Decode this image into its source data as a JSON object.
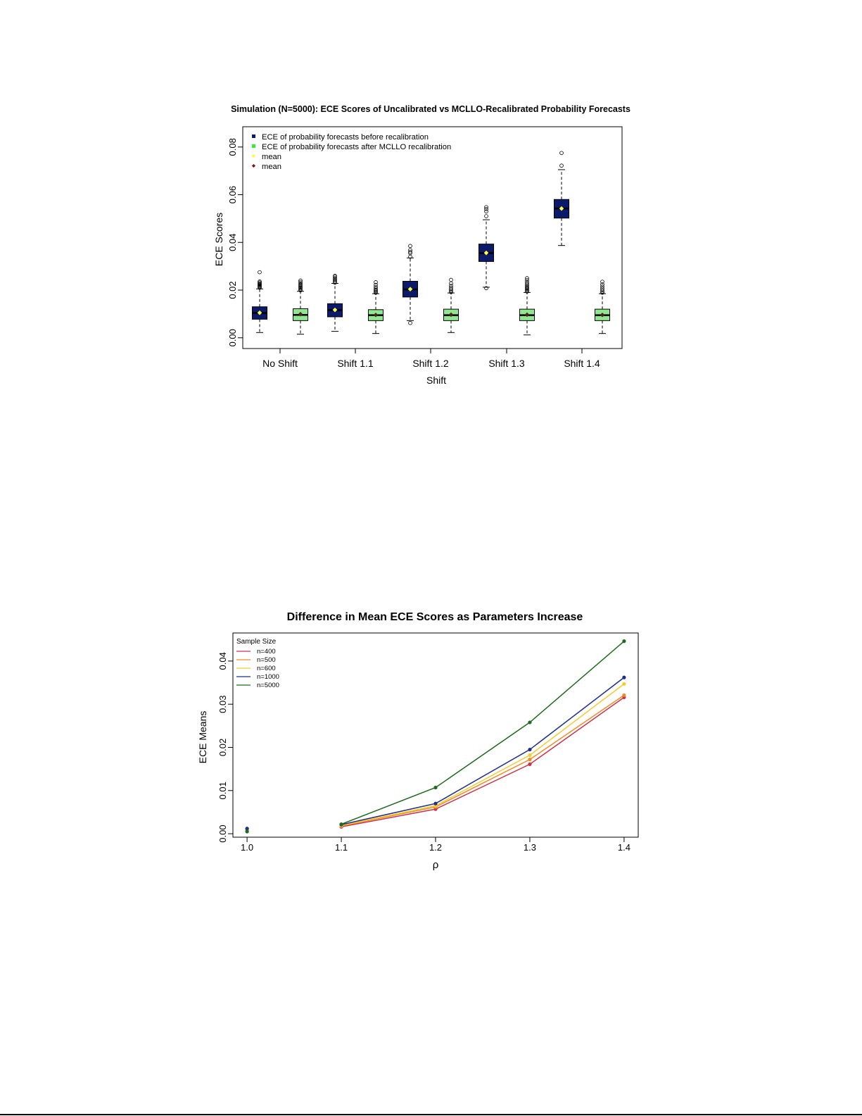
{
  "chart_data": [
    {
      "type": "boxplot",
      "title": "Simulation (N=5000): ECE Scores of Uncalibrated vs MCLLO-Recalibrated Probability Forecasts",
      "xlabel": "Shift",
      "ylabel": "ECE Scores",
      "ylim": [
        0,
        0.09
      ],
      "yticks": [
        "0.00",
        "0.02",
        "0.04",
        "0.06",
        "0.08"
      ],
      "categories": [
        "No Shift",
        "Shift 1.1",
        "Shift 1.2",
        "Shift 1.3",
        "Shift 1.4"
      ],
      "legend_position": "top-left",
      "legend": [
        {
          "label": "ECE of probability forecasts before recalibration",
          "symbol": "square",
          "color": "#0b1a6b"
        },
        {
          "label": "ECE of probability forecasts after MCLLO recalibration",
          "symbol": "square",
          "color": "#33ee33"
        },
        {
          "label": "mean",
          "symbol": "diamond",
          "color": "#ffff33"
        },
        {
          "label": "mean",
          "symbol": "diamond",
          "color": "#7a1a1a"
        }
      ],
      "colors": {
        "before": "#0b1a6b",
        "after": "#8fe88f",
        "mean_before": "#ffff44",
        "mean_after": "#552222"
      },
      "series": [
        {
          "name": "ECE of probability forecasts before recalibration",
          "boxes": [
            {
              "min": 0.0022,
              "q1": 0.0078,
              "median": 0.0104,
              "q3": 0.013,
              "max": 0.0205,
              "mean": 0.0105,
              "outliers": [
                0.021,
                0.0213,
                0.0216,
                0.0219,
                0.0222,
                0.0225,
                0.0228,
                0.0232,
                0.0236,
                0.0275
              ]
            },
            {
              "min": 0.0027,
              "q1": 0.0088,
              "median": 0.0116,
              "q3": 0.0143,
              "max": 0.0228,
              "mean": 0.0117,
              "outliers": [
                0.0231,
                0.0235,
                0.024,
                0.0245,
                0.025,
                0.0256,
                0.026
              ]
            },
            {
              "min": 0.0072,
              "q1": 0.0171,
              "median": 0.0203,
              "q3": 0.0237,
              "max": 0.0335,
              "mean": 0.0204,
              "outliers": [
                0.0062,
                0.034,
                0.0355,
                0.036,
                0.0368,
                0.0385
              ]
            },
            {
              "min": 0.0212,
              "q1": 0.032,
              "median": 0.0355,
              "q3": 0.0393,
              "max": 0.0495,
              "mean": 0.0356,
              "outliers": [
                0.0208,
                0.051,
                0.053,
                0.054,
                0.0548
              ]
            },
            {
              "min": 0.0387,
              "q1": 0.0502,
              "median": 0.0542,
              "q3": 0.058,
              "max": 0.0705,
              "mean": 0.0542,
              "outliers": [
                0.0722,
                0.0775
              ]
            }
          ]
        },
        {
          "name": "ECE of probability forecasts after MCLLO recalibration",
          "boxes": [
            {
              "min": 0.0015,
              "q1": 0.0072,
              "median": 0.0096,
              "q3": 0.0122,
              "max": 0.0195,
              "mean": 0.0099,
              "outliers": [
                0.0199,
                0.0203,
                0.0207,
                0.0211,
                0.0215,
                0.0219,
                0.0223,
                0.0228,
                0.0234,
                0.024
              ]
            },
            {
              "min": 0.0018,
              "q1": 0.0072,
              "median": 0.0095,
              "q3": 0.0118,
              "max": 0.0185,
              "mean": 0.0096,
              "outliers": [
                0.0189,
                0.0193,
                0.0197,
                0.0201,
                0.0206,
                0.0213,
                0.0222,
                0.0233
              ]
            },
            {
              "min": 0.0022,
              "q1": 0.0072,
              "median": 0.0095,
              "q3": 0.012,
              "max": 0.0188,
              "mean": 0.0097,
              "outliers": [
                0.0192,
                0.0197,
                0.0203,
                0.021,
                0.0218,
                0.0228,
                0.0243
              ]
            },
            {
              "min": 0.0012,
              "q1": 0.0072,
              "median": 0.0095,
              "q3": 0.012,
              "max": 0.019,
              "mean": 0.0097,
              "outliers": [
                0.0194,
                0.0198,
                0.0202,
                0.0206,
                0.021,
                0.0215,
                0.022,
                0.0226,
                0.0233,
                0.0242,
                0.025
              ]
            },
            {
              "min": 0.0018,
              "q1": 0.0072,
              "median": 0.0095,
              "q3": 0.012,
              "max": 0.0185,
              "mean": 0.0096,
              "outliers": [
                0.0189,
                0.0194,
                0.02,
                0.0207,
                0.0215,
                0.0224,
                0.0235
              ]
            }
          ]
        }
      ]
    },
    {
      "type": "line",
      "title": "Difference in Mean ECE Scores as Parameters Increase",
      "xlabel": "ρ",
      "ylabel": "ECE Means",
      "xlim": [
        0.985,
        1.415
      ],
      "ylim": [
        -0.0008,
        0.0465
      ],
      "xticks": [
        "1.0",
        "1.1",
        "1.2",
        "1.3",
        "1.4"
      ],
      "yticks": [
        "0.00",
        "0.01",
        "0.02",
        "0.03",
        "0.04"
      ],
      "legend_title": "Sample Size",
      "legend_position": "top-left",
      "x": [
        1.0,
        1.1,
        1.2,
        1.3,
        1.4
      ],
      "series": [
        {
          "name": "n=400",
          "color": "#c8334c",
          "values": [
            0.0008,
            0.0016,
            0.0057,
            0.0161,
            0.0316
          ]
        },
        {
          "name": "n=500",
          "color": "#f08a24",
          "values": [
            0.0008,
            0.0018,
            0.0062,
            0.0172,
            0.0321
          ]
        },
        {
          "name": "n=600",
          "color": "#f3cc2e",
          "values": [
            0.0009,
            0.0019,
            0.0065,
            0.0182,
            0.0347
          ]
        },
        {
          "name": "n=1000",
          "color": "#1e2e8c",
          "values": [
            0.0012,
            0.0021,
            0.007,
            0.0195,
            0.0362
          ]
        },
        {
          "name": "n=5000",
          "color": "#1f6a1f",
          "values": [
            0.0005,
            0.0022,
            0.0107,
            0.0258,
            0.0446
          ]
        }
      ]
    }
  ]
}
